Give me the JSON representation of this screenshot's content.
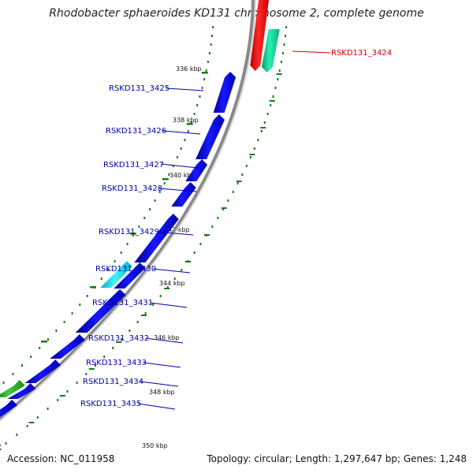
{
  "title": "Rhodobacter sphaeroides KD131 chromosome 2, complete genome",
  "footer": {
    "accession": "Accession: NC_011958",
    "topology": "Topology: circular; Length: 1,297,647 bp; Genes: 1,248"
  },
  "colors": {
    "forward_gene": "#0a0ad8",
    "reverse_gene": "#ee1111",
    "teal_gene": "#11d89a",
    "cyan_gene": "#11d8ec",
    "green_gene": "#22aa22",
    "backbone": "#888888",
    "tick": "#1a7a1a",
    "label_blue": "#0000aa",
    "label_red": "#cc0000"
  },
  "ticks": [
    {
      "label": "336 kbp",
      "kbp": 336
    },
    {
      "label": "338 kbp",
      "kbp": 338
    },
    {
      "label": "340 kbp",
      "kbp": 340
    },
    {
      "label": "342 kbp",
      "kbp": 342
    },
    {
      "label": "344 kbp",
      "kbp": 344
    },
    {
      "label": "346 kbp",
      "kbp": 346
    },
    {
      "label": "348 kbp",
      "kbp": 348
    },
    {
      "label": "350 kbp",
      "kbp": 350
    }
  ],
  "genes": [
    {
      "id": "RSKD131_3424",
      "strand": "-",
      "color": "reverse",
      "labeled": true
    },
    {
      "id": "RSKD131_3424b",
      "strand": "-",
      "color": "teal",
      "labeled": false
    },
    {
      "id": "RSKD131_3425",
      "strand": "+",
      "color": "forward",
      "labeled": true
    },
    {
      "id": "RSKD131_3426",
      "strand": "+",
      "color": "forward",
      "labeled": true
    },
    {
      "id": "RSKD131_3427",
      "strand": "+",
      "color": "forward",
      "labeled": true
    },
    {
      "id": "RSKD131_3428",
      "strand": "+",
      "color": "forward",
      "labeled": true
    },
    {
      "id": "RSKD131_3429",
      "strand": "+",
      "color": "forward",
      "labeled": true
    },
    {
      "id": "RSKD131_3430",
      "strand": "+",
      "color": "cyan",
      "labeled": true
    },
    {
      "id": "RSKD131_3430b",
      "strand": "+",
      "color": "forward",
      "labeled": false
    },
    {
      "id": "RSKD131_3431",
      "strand": "+",
      "color": "forward",
      "labeled": true
    },
    {
      "id": "RSKD131_3432",
      "strand": "+",
      "color": "forward",
      "labeled": true
    },
    {
      "id": "RSKD131_3433",
      "strand": "+",
      "color": "forward",
      "labeled": true
    },
    {
      "id": "RSKD131_3434",
      "strand": "+",
      "color": "green",
      "labeled": true
    },
    {
      "id": "RSKD131_3434b",
      "strand": "+",
      "color": "forward",
      "labeled": false
    },
    {
      "id": "RSKD131_3435",
      "strand": "+",
      "color": "forward",
      "labeled": true
    },
    {
      "id": "bottom_red",
      "strand": "-",
      "color": "reverse",
      "labeled": false
    },
    {
      "id": "bottom_blue",
      "strand": "+",
      "color": "forward",
      "labeled": false
    }
  ]
}
